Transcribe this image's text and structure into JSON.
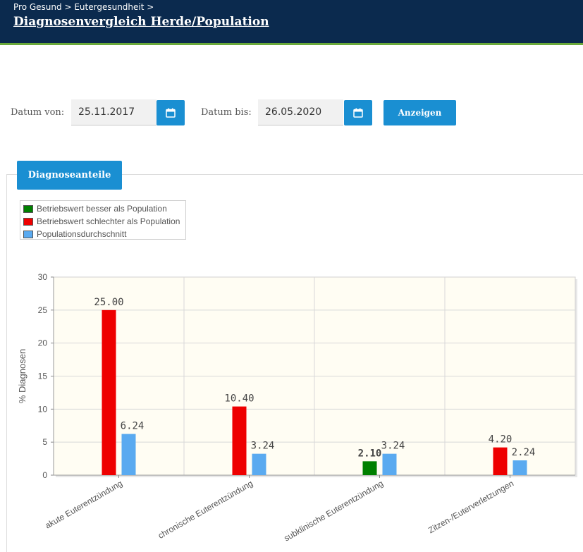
{
  "header": {
    "breadcrumb": [
      "Pro Gesund",
      "Eutergesundheit"
    ],
    "separator": ">",
    "title": "Diagnosenvergleich Herde/Population"
  },
  "filters": {
    "from_label": "Datum von:",
    "from_value": "25.11.2017",
    "to_label": "Datum bis:",
    "to_value": "26.05.2020",
    "submit_label": "Anzeigen"
  },
  "panel": {
    "tab_label": "Diagnoseanteile"
  },
  "colors": {
    "better": "#008000",
    "worse": "#ee0000",
    "population": "#5aaaf0",
    "plot_bg": "#fffdf3",
    "header_bg": "#0b2a4e",
    "accent": "#1a8fd2"
  },
  "chart_data": {
    "type": "bar",
    "title": "",
    "xlabel": "",
    "ylabel": "% Diagnosen",
    "ylim": [
      0,
      30
    ],
    "yticks": [
      0,
      5,
      10,
      15,
      20,
      25,
      30
    ],
    "grid": true,
    "legend_position": "top-left",
    "legend": [
      {
        "key": "better",
        "label": "Betriebswert besser als Population"
      },
      {
        "key": "worse",
        "label": "Betriebswert schlechter als Population"
      },
      {
        "key": "population",
        "label": "Populationsdurchschnitt"
      }
    ],
    "categories": [
      "akute Euterentzündung",
      "chronische Euterentzündung",
      "subklinische Euterentzündung",
      "Zitzen-/Euterverletzungen"
    ],
    "series": [
      {
        "name": "Betriebswert",
        "values": [
          25.0,
          10.4,
          2.1,
          4.2
        ],
        "labels": [
          "25.00",
          "10.40",
          "2.10",
          "4.20"
        ],
        "status": [
          "worse",
          "worse",
          "better",
          "worse"
        ]
      },
      {
        "name": "Populationsdurchschnitt",
        "values": [
          6.24,
          3.24,
          3.24,
          2.24
        ],
        "labels": [
          "6.24",
          "3.24",
          "3.24",
          "2.24"
        ]
      }
    ]
  }
}
